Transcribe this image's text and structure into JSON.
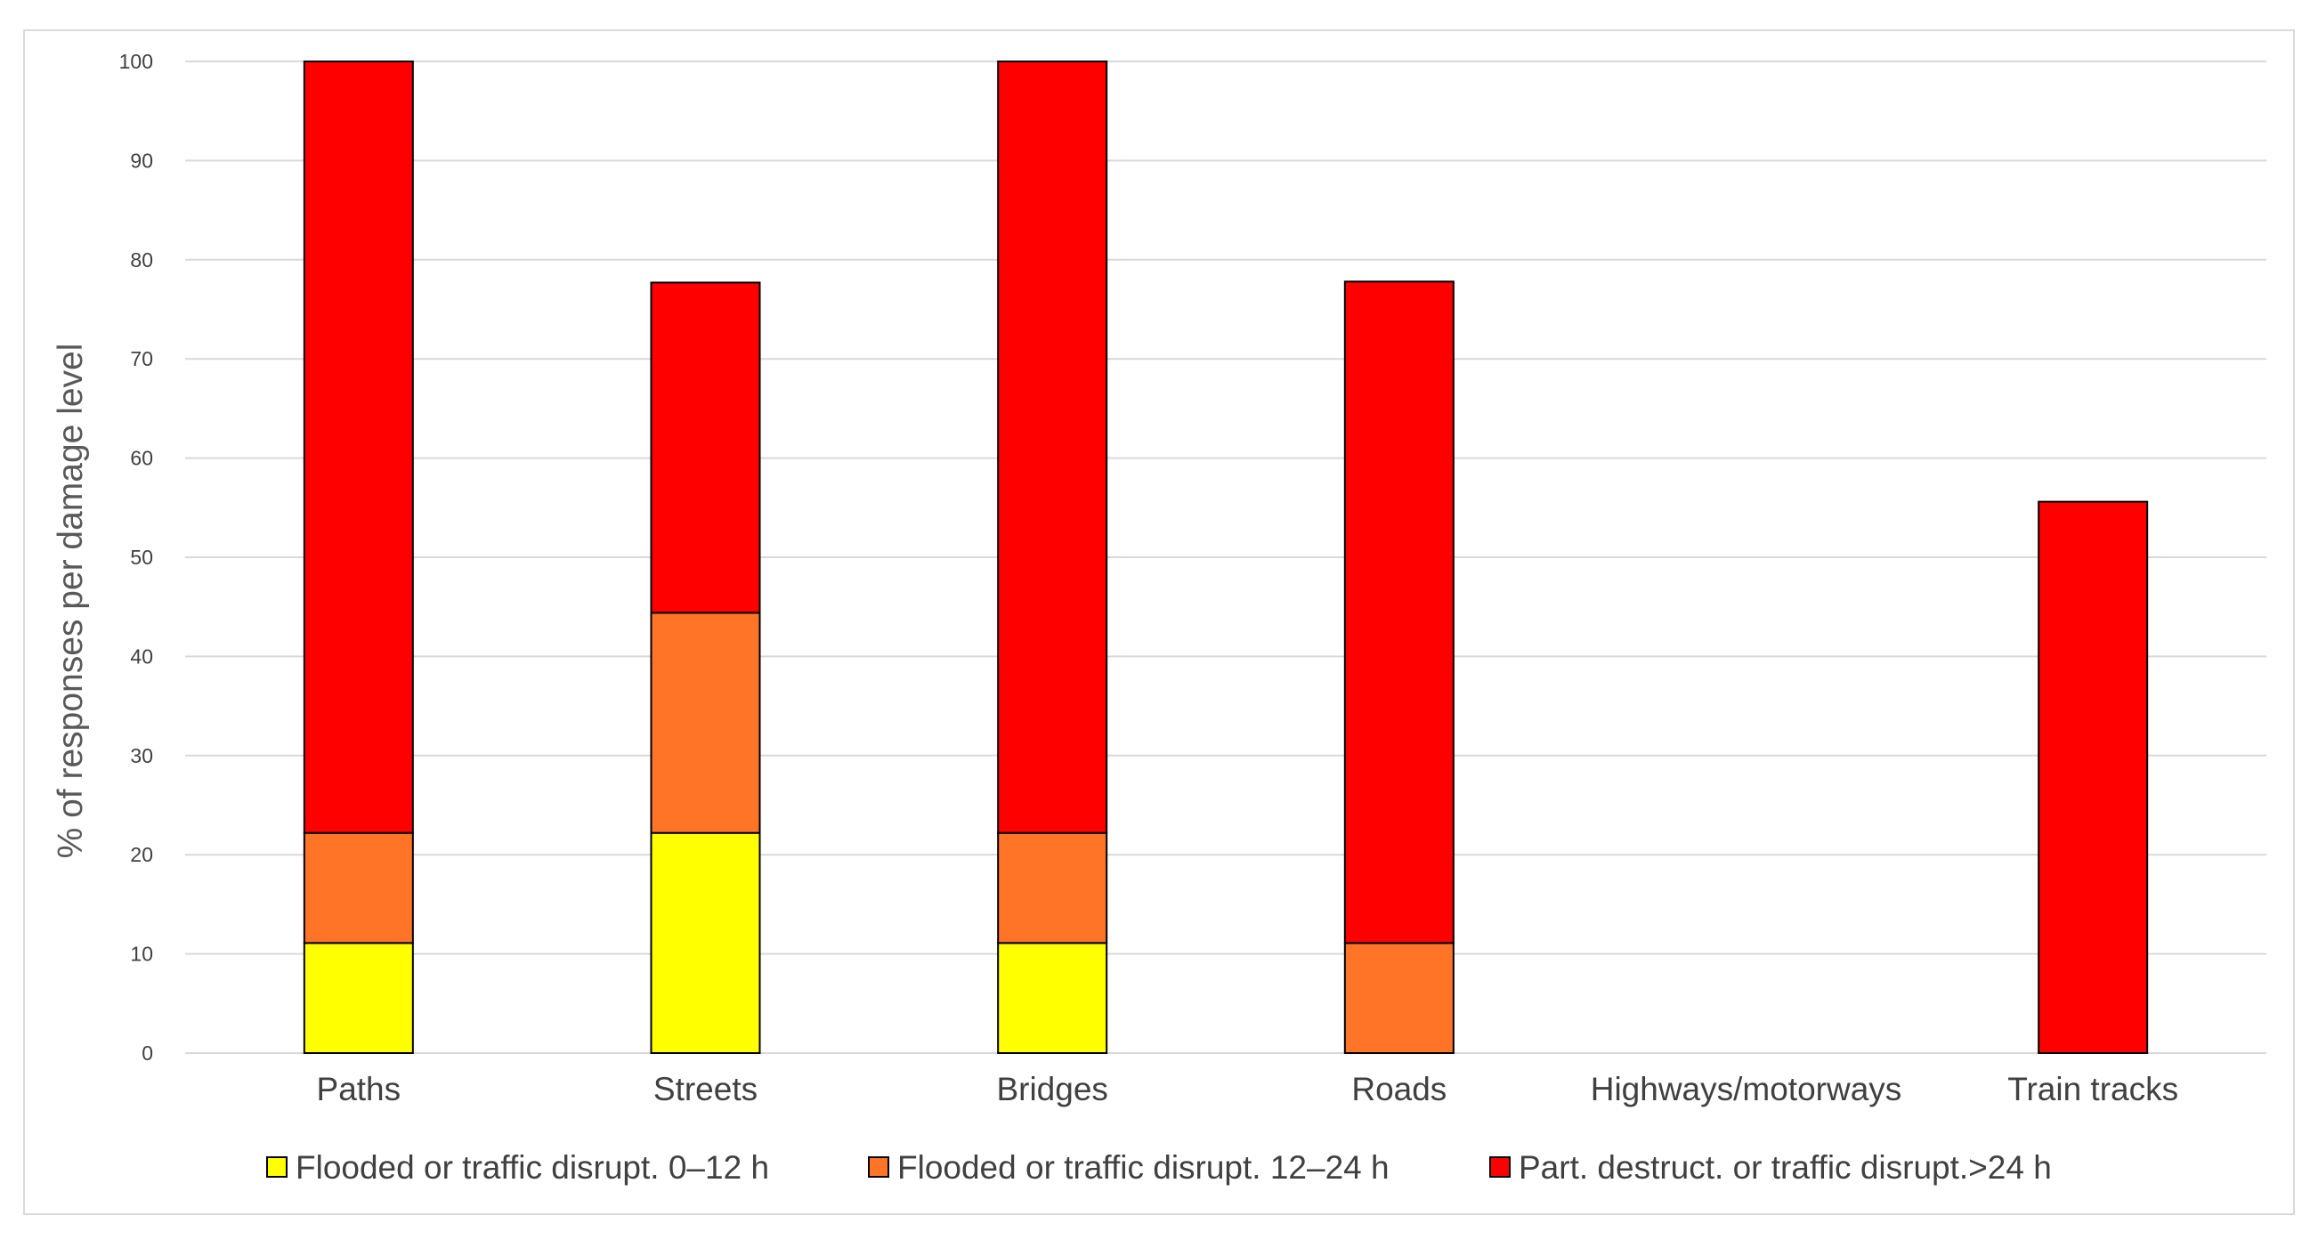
{
  "chart_data": {
    "type": "bar",
    "stacked": true,
    "title": "",
    "xlabel": "",
    "ylabel": "% of responses per damage level",
    "ylim": [
      0,
      100
    ],
    "yticks": [
      0,
      10,
      20,
      30,
      40,
      50,
      60,
      70,
      80,
      90,
      100
    ],
    "grid": true,
    "legend_position": "bottom",
    "categories": [
      "Paths",
      "Streets",
      "Bridges",
      "Roads",
      "Highways/motorways",
      "Train tracks"
    ],
    "series": [
      {
        "name": "Flooded or traffic disrupt. 0–12 h",
        "color": "#ffff00",
        "values": [
          11.1,
          22.2,
          11.1,
          0,
          0,
          0
        ]
      },
      {
        "name": "Flooded or traffic disrupt. 12–24 h",
        "color": "#ff7427",
        "values": [
          11.1,
          22.2,
          11.1,
          11.1,
          0,
          0
        ]
      },
      {
        "name": "Part. destruct. or traffic disrupt.>24 h",
        "color": "#ff0000",
        "values": [
          77.8,
          33.3,
          77.8,
          66.7,
          0,
          55.6
        ]
      }
    ]
  },
  "colors": {
    "gridline": "#d9d9d9",
    "bar_outline": "#000000",
    "tick_text": "#404040",
    "axis_title": "#595959",
    "frame": "#d9d9d9"
  }
}
